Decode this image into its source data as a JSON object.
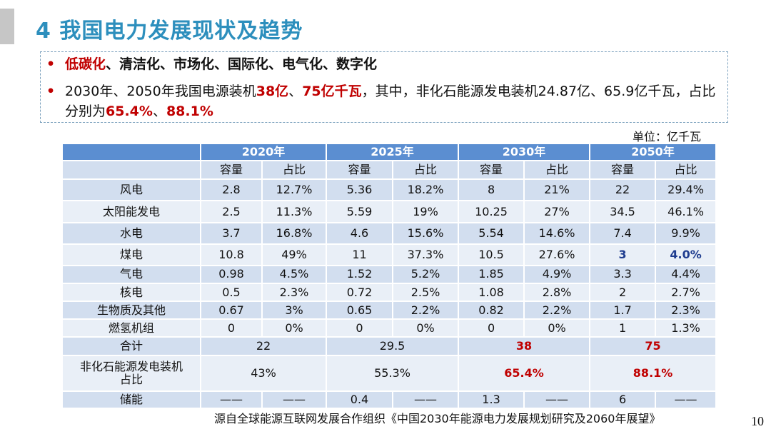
{
  "title": "4 我国电力发展现状及趋势",
  "bullets": {
    "b1": {
      "mark": "•",
      "red": "低碳化",
      "rest": "、清洁化、市场化、国际化、电气化、数字化"
    },
    "b2": {
      "mark": "•",
      "p1": "2030年、2050年我国电源装机",
      "r1": "38亿",
      "p2": "、",
      "r2": "75亿千瓦",
      "p3": "，其中，非化石能源发电装机24.87亿、65.9亿千瓦，占比分别为",
      "r3": "65.4%",
      "p4": "、",
      "r4": "88.1%"
    }
  },
  "unit": "单位：亿千瓦",
  "table": {
    "years": [
      "2020年",
      "2025年",
      "2030年",
      "2050年"
    ],
    "sub": [
      "容量",
      "占比"
    ],
    "rows": [
      {
        "name": "风电",
        "cells": [
          "2.8",
          "12.7%",
          "5.36",
          "18.2%",
          "8",
          "21%",
          "22",
          "29.4%"
        ]
      },
      {
        "name": "太阳能发电",
        "cells": [
          "2.5",
          "11.3%",
          "5.59",
          "19%",
          "10.25",
          "27%",
          "34.5",
          "46.1%"
        ]
      },
      {
        "name": "水电",
        "cells": [
          "3.7",
          "16.8%",
          "4.6",
          "15.6%",
          "5.54",
          "14.6%",
          "7.4",
          "9.9%"
        ]
      },
      {
        "name": "煤电",
        "cells": [
          "10.8",
          "49%",
          "11",
          "37.3%",
          "10.5",
          "27.6%",
          "3",
          "4.0%"
        ]
      },
      {
        "name": "气电",
        "cells": [
          "0.98",
          "4.5%",
          "1.52",
          "5.2%",
          "1.85",
          "4.9%",
          "3.3",
          "4.4%"
        ]
      },
      {
        "name": "核电",
        "cells": [
          "0.5",
          "2.3%",
          "0.72",
          "2.5%",
          "1.08",
          "2.8%",
          "2",
          "2.7%"
        ]
      },
      {
        "name": "生物质及其他",
        "cells": [
          "0.67",
          "3%",
          "0.65",
          "2.2%",
          "0.82",
          "2.2%",
          "1.7",
          "2.3%"
        ]
      },
      {
        "name": "燃氢机组",
        "cells": [
          "0",
          "0%",
          "0",
          "0%",
          "0",
          "0%",
          "1",
          "1.3%"
        ]
      }
    ],
    "total": {
      "name": "合计",
      "values": [
        "22",
        "29.5",
        "38",
        "75"
      ]
    },
    "share": {
      "name_l1": "非化石能源发电装机",
      "name_l2": "占比",
      "values": [
        "43%",
        "55.3%",
        "65.4%",
        "88.1%"
      ]
    },
    "storage": {
      "name": "储能",
      "cells": [
        "——",
        "——",
        "0.4",
        "——",
        "1.3",
        "——",
        "6",
        "——"
      ]
    }
  },
  "source": "源自全球能源互联网发展合作组织《中国2030年能源电力发展规划研究及2060年展望》",
  "page_number": "10",
  "colors": {
    "title": "#2d8fbd",
    "header": "#5b8ed1",
    "row_dark": "#d2deef",
    "row_light": "#e9eff7",
    "red_emphasis": "#c00000",
    "blue_emphasis": "#1f3d8f"
  }
}
